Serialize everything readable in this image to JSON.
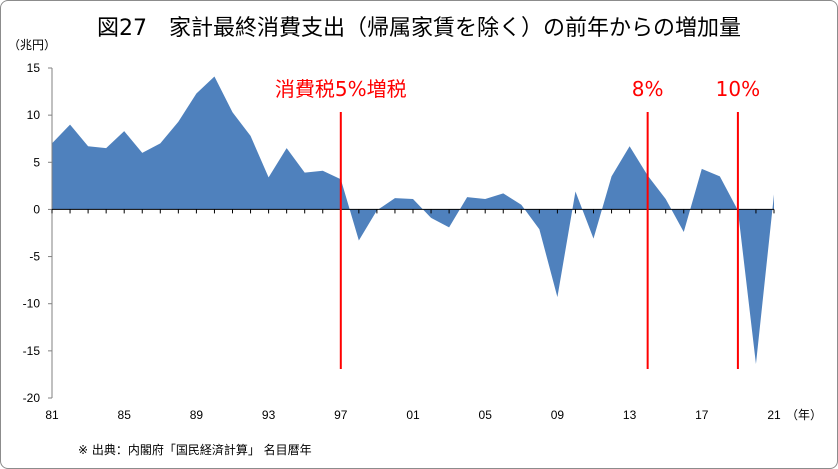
{
  "title": "図27　家計最終消費支出（帰属家賃を除く）の前年からの増加量",
  "unit_label": "（兆円）",
  "source_note": "※ 出典：内閣府「国民経済計算」 名目暦年",
  "chart_data": {
    "type": "area",
    "title": "図27　家計最終消費支出（帰属家賃を除く）の前年からの増加量",
    "ylabel": "（兆円）",
    "xlabel": "（年）",
    "ylim": [
      -20,
      15
    ],
    "xlim": [
      1981,
      2021
    ],
    "y_ticks": [
      15,
      10,
      5,
      0,
      -5,
      -10,
      -15,
      -20
    ],
    "y_tick_labels": [
      "15",
      "10",
      "5",
      "0",
      "-5",
      "-10",
      "-15",
      "-20"
    ],
    "x_ticks": [
      1981,
      1985,
      1989,
      1993,
      1997,
      2001,
      2005,
      2009,
      2013,
      2017,
      2021
    ],
    "x_tick_labels": [
      "81",
      "85",
      "89",
      "93",
      "97",
      "01",
      "05",
      "09",
      "13",
      "17",
      "21"
    ],
    "x_unit_label": "（年）",
    "grid": false,
    "fill_color": "#4f81bd",
    "x": [
      1981,
      1982,
      1983,
      1984,
      1985,
      1986,
      1987,
      1988,
      1989,
      1990,
      1991,
      1992,
      1993,
      1994,
      1995,
      1996,
      1997,
      1998,
      1999,
      2000,
      2001,
      2002,
      2003,
      2004,
      2005,
      2006,
      2007,
      2008,
      2009,
      2010,
      2011,
      2012,
      2013,
      2014,
      2015,
      2016,
      2017,
      2018,
      2019,
      2020,
      2021
    ],
    "values": [
      7.0,
      9.0,
      6.7,
      6.5,
      8.3,
      6.0,
      7.0,
      9.3,
      12.3,
      14.1,
      10.3,
      7.8,
      3.4,
      6.5,
      3.9,
      4.1,
      3.2,
      -3.3,
      -0.1,
      1.2,
      1.1,
      -0.9,
      -1.9,
      1.3,
      1.1,
      1.7,
      0.5,
      -2.1,
      -9.3,
      1.9,
      -3.1,
      3.5,
      6.7,
      3.6,
      1.1,
      -2.4,
      4.3,
      3.5,
      -0.1,
      -16.4,
      1.6
    ],
    "annotations": [
      {
        "label": "消費税5%増税",
        "x": 1997,
        "color": "#ff0000"
      },
      {
        "label": "8%",
        "x": 2014,
        "color": "#ff0000"
      },
      {
        "label": "10%",
        "x": 2019,
        "color": "#ff0000"
      }
    ]
  }
}
